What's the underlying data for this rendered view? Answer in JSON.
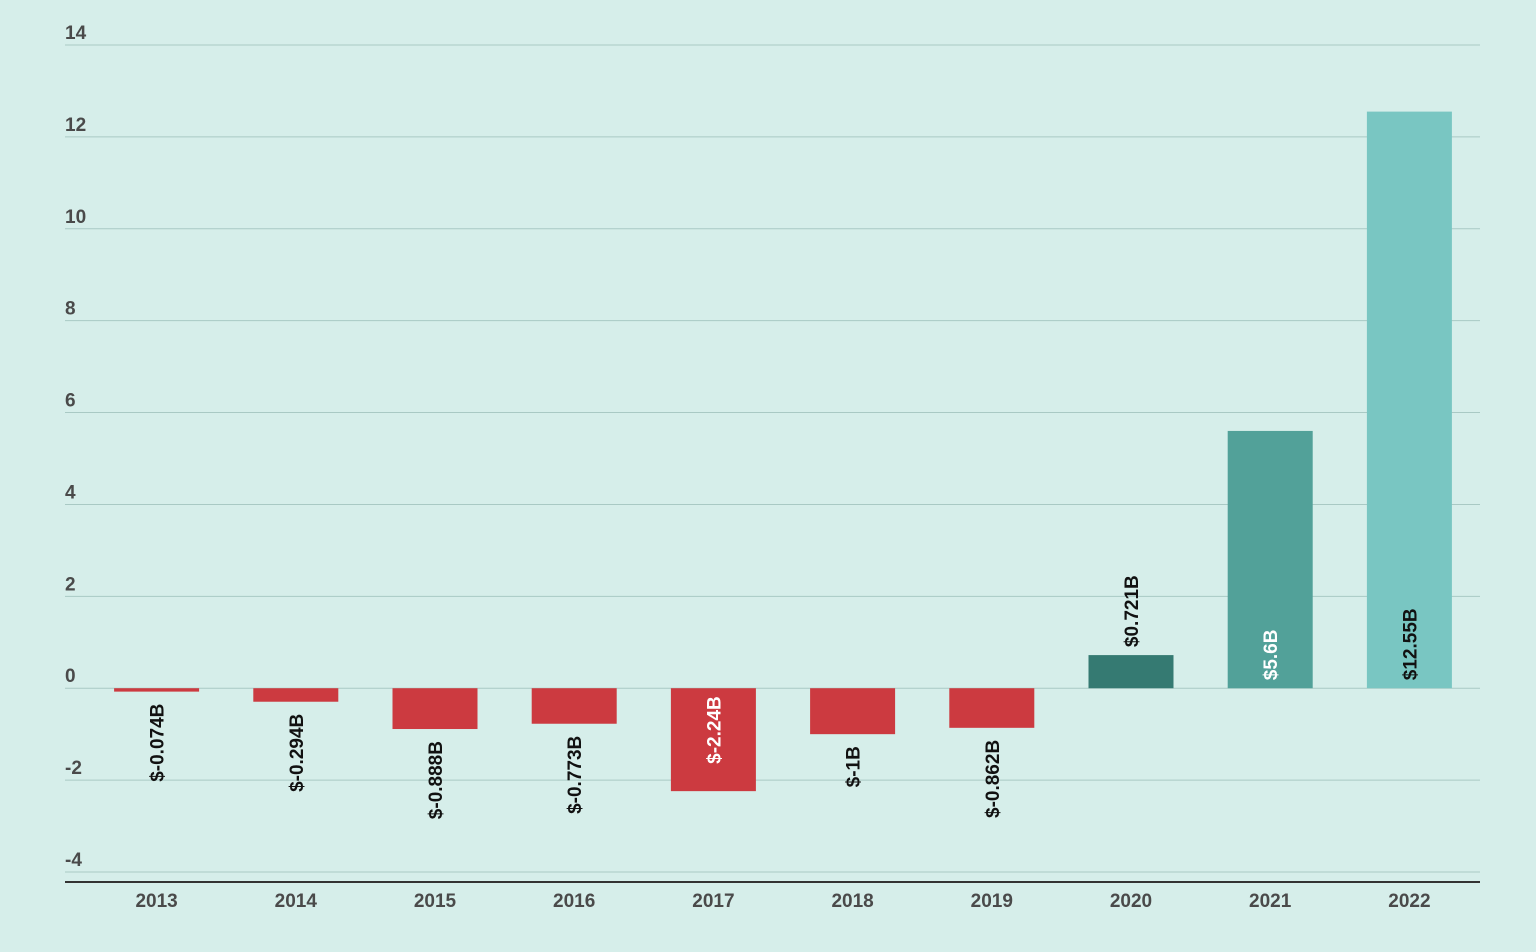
{
  "chart_data": {
    "type": "bar",
    "title": "",
    "xlabel": "",
    "ylabel": "",
    "ylim": [
      -4,
      14
    ],
    "yticks": [
      14,
      12,
      10,
      8,
      6,
      4,
      2,
      0,
      -2,
      -4
    ],
    "grid": true,
    "categories": [
      "2013",
      "2014",
      "2015",
      "2016",
      "2017",
      "2018",
      "2019",
      "2020",
      "2021",
      "2022"
    ],
    "values": [
      -0.074,
      -0.294,
      -0.888,
      -0.773,
      -2.24,
      -1.0,
      -0.862,
      0.721,
      5.6,
      12.55
    ],
    "labels": [
      "$-0.074B",
      "$-0.294B",
      "$-0.888B",
      "$-0.773B",
      "$-2.24B",
      "$-1B",
      "$-0.862B",
      "$0.721B",
      "$5.6B",
      "$12.55B"
    ],
    "bar_colors": [
      "#cc3a40",
      "#cc3a40",
      "#cc3a40",
      "#cc3a40",
      "#cc3a40",
      "#cc3a40",
      "#cc3a40",
      "#357a72",
      "#52a199",
      "#79c6c2"
    ],
    "label_colors": [
      "#111111",
      "#111111",
      "#111111",
      "#111111",
      "#ffffff",
      "#111111",
      "#111111",
      "#111111",
      "#ffffff",
      "#111111"
    ],
    "label_inside": [
      false,
      false,
      false,
      false,
      true,
      false,
      false,
      false,
      true,
      true
    ]
  },
  "colors": {
    "background": "#d6eeea",
    "negative": "#cc3a40",
    "grid": "#a9c9c4",
    "axis": "#333333",
    "tick_text": "#4a4a4a"
  }
}
